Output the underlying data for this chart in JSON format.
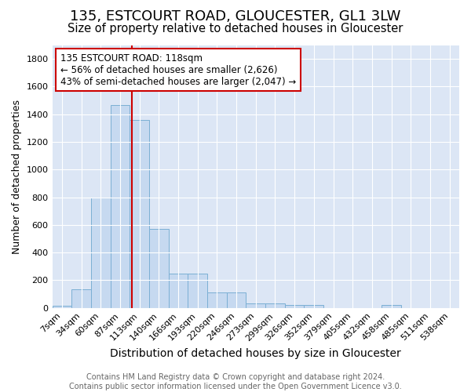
{
  "title1": "135, ESTCOURT ROAD, GLOUCESTER, GL1 3LW",
  "title2": "Size of property relative to detached houses in Gloucester",
  "xlabel": "Distribution of detached houses by size in Gloucester",
  "ylabel": "Number of detached properties",
  "bar_color": "#c6d9f0",
  "bar_edge_color": "#7bafd4",
  "background_color": "#dce6f5",
  "bin_labels": [
    "7sqm",
    "34sqm",
    "60sqm",
    "87sqm",
    "113sqm",
    "140sqm",
    "166sqm",
    "193sqm",
    "220sqm",
    "246sqm",
    "273sqm",
    "299sqm",
    "326sqm",
    "352sqm",
    "379sqm",
    "405sqm",
    "432sqm",
    "458sqm",
    "485sqm",
    "511sqm",
    "538sqm"
  ],
  "bar_heights": [
    15,
    135,
    795,
    1465,
    1360,
    570,
    250,
    250,
    110,
    110,
    35,
    35,
    20,
    20,
    0,
    0,
    0,
    20,
    0,
    0,
    0
  ],
  "ylim": [
    0,
    1900
  ],
  "yticks": [
    0,
    200,
    400,
    600,
    800,
    1000,
    1200,
    1400,
    1600,
    1800
  ],
  "vline_x": 3.6,
  "vline_color": "#cc0000",
  "annotation_text": "135 ESTCOURT ROAD: 118sqm\n← 56% of detached houses are smaller (2,626)\n43% of semi-detached houses are larger (2,047) →",
  "annotation_box_color": "#ffffff",
  "annotation_border_color": "#cc0000",
  "annotation_fontsize": 8.5,
  "title1_fontsize": 13,
  "title2_fontsize": 10.5,
  "xlabel_fontsize": 10,
  "ylabel_fontsize": 9,
  "tick_fontsize": 8,
  "footnote_fontsize": 7,
  "fig_bg": "#ffffff",
  "footnote_line1": "Contains HM Land Registry data © Crown copyright and database right 2024.",
  "footnote_line2": "Contains public sector information licensed under the Open Government Licence v3.0."
}
